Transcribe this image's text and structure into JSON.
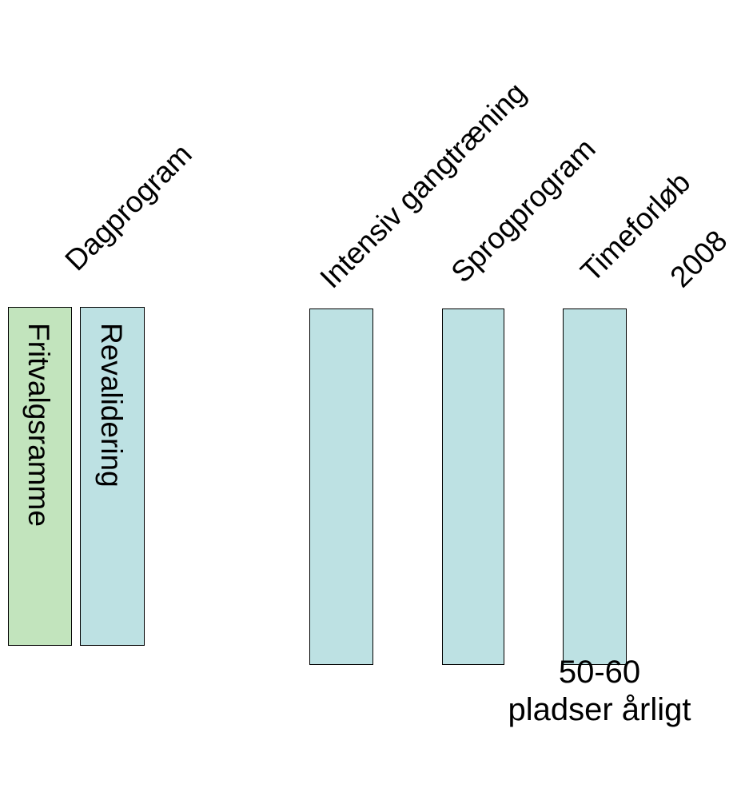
{
  "colors": {
    "green_box": "#c2e4bd",
    "blue_box": "#bde1e3",
    "border": "#000000"
  },
  "labels": {
    "fritvalgsramme": "Fritvalgsramme",
    "revalidering": "Revalidering",
    "dagprogram": "Dagprogram",
    "intensiv": "Intensiv gangtræning",
    "sprogprogram": "Sprogprogram",
    "timeforlob": "Timeforløb",
    "year": "2008"
  },
  "footnote": {
    "line1": "50-60",
    "line2": "pladser årligt"
  }
}
